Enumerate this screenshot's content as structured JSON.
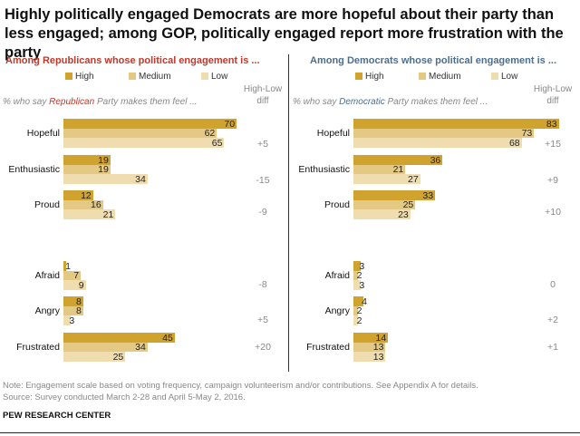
{
  "title": "Highly politically engaged Democrats are more hopeful about their party than less engaged; among GOP, politically engaged report more frustration with the party",
  "colors": {
    "High": "#D0A22E",
    "Medium": "#E3C983",
    "Low": "#EFDDB0",
    "rep": "#C0392B",
    "dem": "#4B6E8E"
  },
  "legend": [
    "High",
    "Medium",
    "Low"
  ],
  "diff_header": "High-Low diff",
  "note": "Note: Engagement scale based on voting frequency, campaign volunteerism and/or contributions. See Appendix A for details.",
  "source": "Source: Survey conducted March 2-28 and April 5-May 2, 2016.",
  "brand": "PEW RESEARCH CENTER",
  "chart_data": [
    {
      "type": "bar",
      "subtitle": "Among Republicans whose political engagement is ...",
      "lead": {
        "pre": "% who say ",
        "party": "Republican",
        "post": " Party makes them feel ..."
      },
      "categories": [
        "Hopeful",
        "Enthusiastic",
        "Proud",
        "Afraid",
        "Angry",
        "Frustrated"
      ],
      "series": [
        {
          "name": "High",
          "values": [
            70,
            19,
            12,
            1,
            8,
            45
          ]
        },
        {
          "name": "Medium",
          "values": [
            62,
            19,
            16,
            7,
            8,
            34
          ]
        },
        {
          "name": "Low",
          "values": [
            65,
            34,
            21,
            9,
            3,
            25
          ]
        }
      ],
      "diff": [
        "+5",
        "-15",
        "-9",
        "-8",
        "+5",
        "+20"
      ]
    },
    {
      "type": "bar",
      "subtitle": "Among Democrats whose political engagement is ...",
      "lead": {
        "pre": "% who say ",
        "party": "Democratic",
        "post": " Party makes them feel ..."
      },
      "categories": [
        "Hopeful",
        "Enthusiastic",
        "Proud",
        "Afraid",
        "Angry",
        "Frustrated"
      ],
      "series": [
        {
          "name": "High",
          "values": [
            83,
            36,
            33,
            3,
            4,
            14
          ]
        },
        {
          "name": "Medium",
          "values": [
            73,
            21,
            25,
            2,
            2,
            13
          ]
        },
        {
          "name": "Low",
          "values": [
            68,
            27,
            23,
            3,
            2,
            13
          ]
        }
      ],
      "diff": [
        "+15",
        "+9",
        "+10",
        "0",
        "+2",
        "+1"
      ]
    }
  ]
}
